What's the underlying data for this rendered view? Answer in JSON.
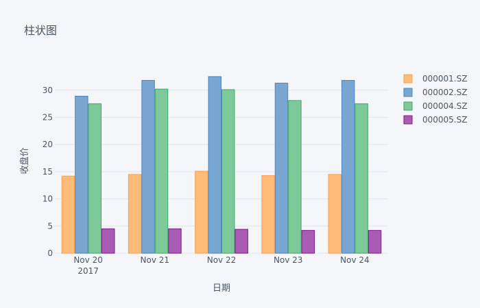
{
  "chart_data": {
    "type": "bar",
    "title": "柱状图",
    "xlabel": "日期",
    "ylabel": "收盘价",
    "categories": [
      "Nov 20",
      "Nov 21",
      "Nov 22",
      "Nov 23",
      "Nov 24"
    ],
    "category_sublabels": [
      "2017",
      "",
      "",
      "",
      ""
    ],
    "ylim": [
      0,
      34
    ],
    "yticks": [
      0,
      5,
      10,
      15,
      20,
      25,
      30
    ],
    "grid": true,
    "legend_position": "right",
    "series": [
      {
        "name": "000001.SZ",
        "color": "#ffbb78",
        "stroke": "#f5a25a",
        "values": [
          14.2,
          14.5,
          15.1,
          14.3,
          14.5
        ]
      },
      {
        "name": "000002.SZ",
        "color": "#7aa6d2",
        "stroke": "#4a86c0",
        "values": [
          28.9,
          31.8,
          32.5,
          31.3,
          31.8
        ]
      },
      {
        "name": "000004.SZ",
        "color": "#7ec99a",
        "stroke": "#3fa866",
        "values": [
          27.5,
          30.2,
          30.1,
          28.1,
          27.5
        ]
      },
      {
        "name": "000005.SZ",
        "color": "#a95bb5",
        "stroke": "#7a1f87",
        "values": [
          4.5,
          4.5,
          4.4,
          4.2,
          4.2
        ]
      }
    ]
  }
}
